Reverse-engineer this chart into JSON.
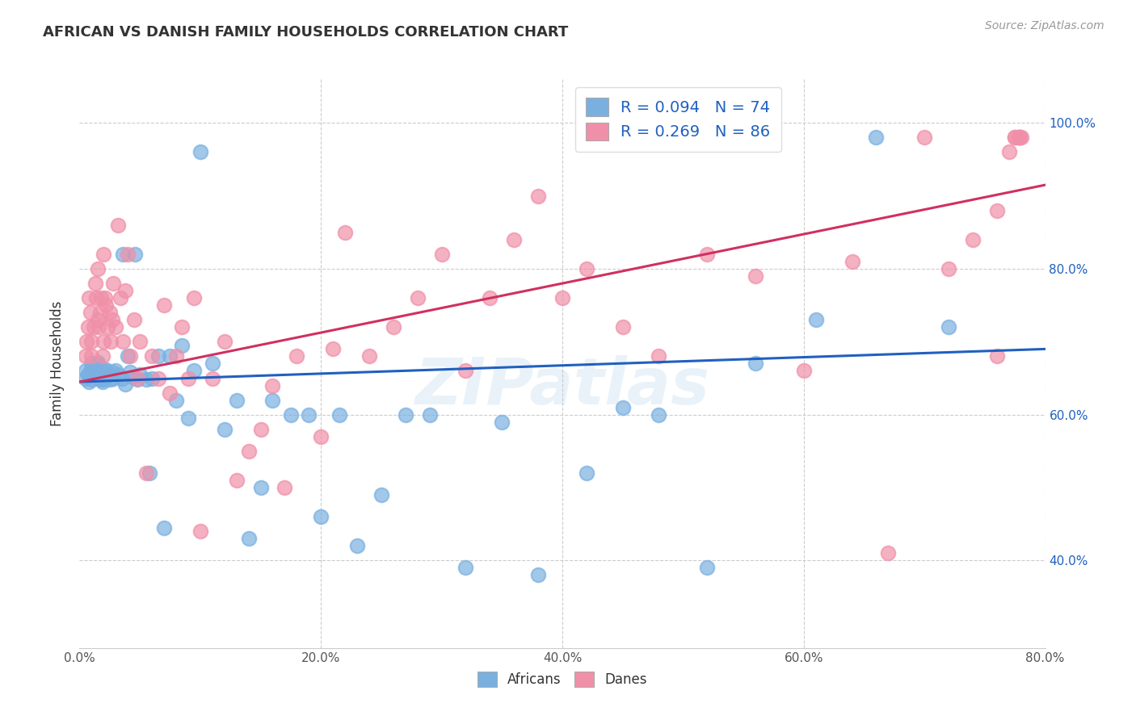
{
  "title": "AFRICAN VS DANISH FAMILY HOUSEHOLDS CORRELATION CHART",
  "source": "Source: ZipAtlas.com",
  "ylabel_label": "Family Households",
  "xlim": [
    0.0,
    0.8
  ],
  "ylim": [
    0.28,
    1.06
  ],
  "watermark": "ZIPatlas",
  "legend_r_african": "0.094",
  "legend_n_african": "74",
  "legend_r_danes": "0.269",
  "legend_n_danes": "86",
  "african_color": "#7ab0e0",
  "danish_color": "#f090a8",
  "african_line_color": "#2060c0",
  "danish_line_color": "#d03060",
  "african_label": "Africans",
  "danish_label": "Danes",
  "african_line_x0": 0.0,
  "african_line_y0": 0.645,
  "african_line_x1": 0.8,
  "african_line_y1": 0.69,
  "danish_line_x0": 0.0,
  "danish_line_y0": 0.645,
  "danish_line_x1": 0.8,
  "danish_line_y1": 0.915,
  "xtick_vals": [
    0.0,
    0.2,
    0.4,
    0.6,
    0.8
  ],
  "ytick_vals": [
    0.4,
    0.6,
    0.8,
    1.0
  ],
  "african_points_x": [
    0.005,
    0.005,
    0.007,
    0.008,
    0.009,
    0.01,
    0.01,
    0.01,
    0.012,
    0.013,
    0.014,
    0.015,
    0.015,
    0.015,
    0.016,
    0.018,
    0.018,
    0.019,
    0.02,
    0.02,
    0.021,
    0.022,
    0.022,
    0.023,
    0.025,
    0.027,
    0.028,
    0.03,
    0.032,
    0.035,
    0.036,
    0.038,
    0.04,
    0.042,
    0.044,
    0.046,
    0.048,
    0.05,
    0.055,
    0.058,
    0.06,
    0.065,
    0.07,
    0.075,
    0.08,
    0.085,
    0.09,
    0.095,
    0.1,
    0.11,
    0.12,
    0.13,
    0.14,
    0.15,
    0.16,
    0.175,
    0.19,
    0.2,
    0.215,
    0.23,
    0.25,
    0.27,
    0.29,
    0.32,
    0.35,
    0.38,
    0.42,
    0.45,
    0.48,
    0.52,
    0.56,
    0.61,
    0.66,
    0.72
  ],
  "african_points_y": [
    0.65,
    0.66,
    0.655,
    0.645,
    0.658,
    0.648,
    0.662,
    0.67,
    0.658,
    0.665,
    0.66,
    0.655,
    0.668,
    0.672,
    0.65,
    0.66,
    0.648,
    0.645,
    0.655,
    0.648,
    0.66,
    0.652,
    0.662,
    0.655,
    0.648,
    0.658,
    0.65,
    0.66,
    0.655,
    0.65,
    0.82,
    0.642,
    0.68,
    0.658,
    0.652,
    0.82,
    0.648,
    0.655,
    0.648,
    0.52,
    0.65,
    0.68,
    0.445,
    0.68,
    0.62,
    0.695,
    0.595,
    0.66,
    0.96,
    0.67,
    0.58,
    0.62,
    0.43,
    0.5,
    0.62,
    0.6,
    0.6,
    0.46,
    0.6,
    0.42,
    0.49,
    0.6,
    0.6,
    0.39,
    0.59,
    0.38,
    0.52,
    0.61,
    0.6,
    0.39,
    0.67,
    0.73,
    0.98,
    0.72
  ],
  "danish_points_x": [
    0.005,
    0.006,
    0.007,
    0.008,
    0.009,
    0.01,
    0.01,
    0.012,
    0.013,
    0.014,
    0.015,
    0.015,
    0.016,
    0.017,
    0.018,
    0.019,
    0.02,
    0.02,
    0.021,
    0.022,
    0.023,
    0.025,
    0.026,
    0.027,
    0.028,
    0.03,
    0.032,
    0.034,
    0.036,
    0.038,
    0.04,
    0.042,
    0.045,
    0.048,
    0.05,
    0.055,
    0.06,
    0.065,
    0.07,
    0.075,
    0.08,
    0.085,
    0.09,
    0.095,
    0.1,
    0.11,
    0.12,
    0.13,
    0.14,
    0.15,
    0.16,
    0.17,
    0.18,
    0.2,
    0.21,
    0.22,
    0.24,
    0.26,
    0.28,
    0.3,
    0.32,
    0.34,
    0.36,
    0.38,
    0.4,
    0.42,
    0.45,
    0.48,
    0.52,
    0.56,
    0.6,
    0.64,
    0.67,
    0.7,
    0.72,
    0.74,
    0.76,
    0.76,
    0.77,
    0.775,
    0.775,
    0.778,
    0.778,
    0.779,
    0.779,
    0.78
  ],
  "danish_points_y": [
    0.68,
    0.7,
    0.72,
    0.76,
    0.74,
    0.68,
    0.7,
    0.72,
    0.78,
    0.76,
    0.73,
    0.8,
    0.72,
    0.74,
    0.76,
    0.68,
    0.7,
    0.82,
    0.76,
    0.75,
    0.72,
    0.74,
    0.7,
    0.73,
    0.78,
    0.72,
    0.86,
    0.76,
    0.7,
    0.77,
    0.82,
    0.68,
    0.73,
    0.65,
    0.7,
    0.52,
    0.68,
    0.65,
    0.75,
    0.63,
    0.68,
    0.72,
    0.65,
    0.76,
    0.44,
    0.65,
    0.7,
    0.51,
    0.55,
    0.58,
    0.64,
    0.5,
    0.68,
    0.57,
    0.69,
    0.85,
    0.68,
    0.72,
    0.76,
    0.82,
    0.66,
    0.76,
    0.84,
    0.9,
    0.76,
    0.8,
    0.72,
    0.68,
    0.82,
    0.79,
    0.66,
    0.81,
    0.41,
    0.98,
    0.8,
    0.84,
    0.88,
    0.68,
    0.96,
    0.98,
    0.98,
    0.98,
    0.98,
    0.98,
    0.98,
    0.98
  ]
}
